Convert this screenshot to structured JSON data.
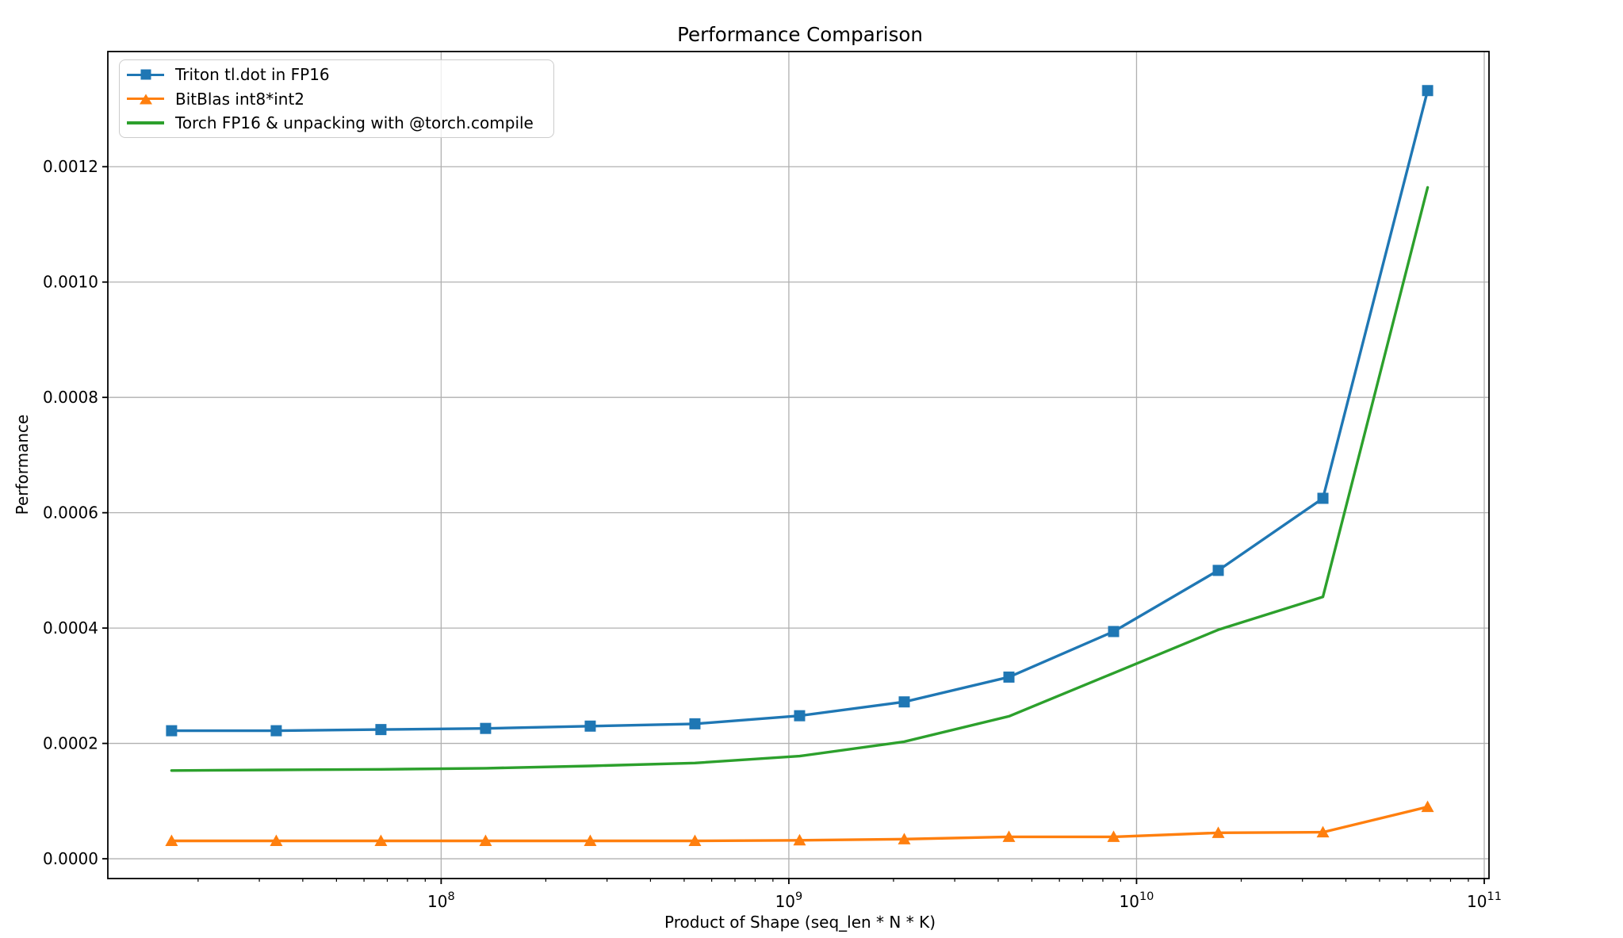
{
  "chart_data": {
    "type": "line",
    "title": "Performance Comparison",
    "xlabel": "Product of Shape (seq_len * N * K)",
    "ylabel": "Performance",
    "x_scale": "log",
    "grid": true,
    "legend_position": "upper left",
    "xlim": [
      11000000,
      103200000000
    ],
    "ylim": [
      -3.43e-05,
      0.0013997
    ],
    "x": [
      16777216,
      33554432,
      67108864,
      134217728,
      268435456,
      536870912,
      1073741824,
      2147483648,
      4294967296,
      8589934592,
      17179869184,
      34359738368,
      68719476736
    ],
    "series": [
      {
        "name": "Triton tl.dot in FP16",
        "color": "#1f77b4",
        "marker": "square",
        "values": [
          0.000222,
          0.000222,
          0.000224,
          0.000226,
          0.00023,
          0.000234,
          0.000248,
          0.000272,
          0.000315,
          0.000394,
          0.0005,
          0.000625,
          0.001332
        ]
      },
      {
        "name": "BitBlas int8*int2",
        "color": "#ff7f0e",
        "marker": "triangle",
        "values": [
          3.1e-05,
          3.1e-05,
          3.1e-05,
          3.1e-05,
          3.1e-05,
          3.1e-05,
          3.2e-05,
          3.4e-05,
          3.8e-05,
          3.8e-05,
          4.5e-05,
          4.6e-05,
          9e-05
        ]
      },
      {
        "name": "Torch FP16 & unpacking with @torch.compile",
        "color": "#2ca02c",
        "marker": "none",
        "values": [
          0.000153,
          0.000154,
          0.000155,
          0.000157,
          0.000161,
          0.000166,
          0.000178,
          0.000203,
          0.000247,
          0.000322,
          0.000397,
          0.000454,
          0.001164
        ]
      }
    ],
    "x_ticks": [
      {
        "value": 100000000,
        "base": "10",
        "exp": "8"
      },
      {
        "value": 1000000000,
        "base": "10",
        "exp": "9"
      },
      {
        "value": 10000000000,
        "base": "10",
        "exp": "10"
      },
      {
        "value": 100000000000,
        "base": "10",
        "exp": "11"
      }
    ],
    "y_ticks": [
      {
        "value": 0.0,
        "label": "0.0000"
      },
      {
        "value": 0.0002,
        "label": "0.0002"
      },
      {
        "value": 0.0004,
        "label": "0.0004"
      },
      {
        "value": 0.0006,
        "label": "0.0006"
      },
      {
        "value": 0.0008,
        "label": "0.0008"
      },
      {
        "value": 0.001,
        "label": "0.0010"
      },
      {
        "value": 0.0012,
        "label": "0.0012"
      }
    ],
    "colors": {
      "grid": "#b0b0b0",
      "spine": "#000000",
      "legend_border": "#cccccc"
    }
  }
}
